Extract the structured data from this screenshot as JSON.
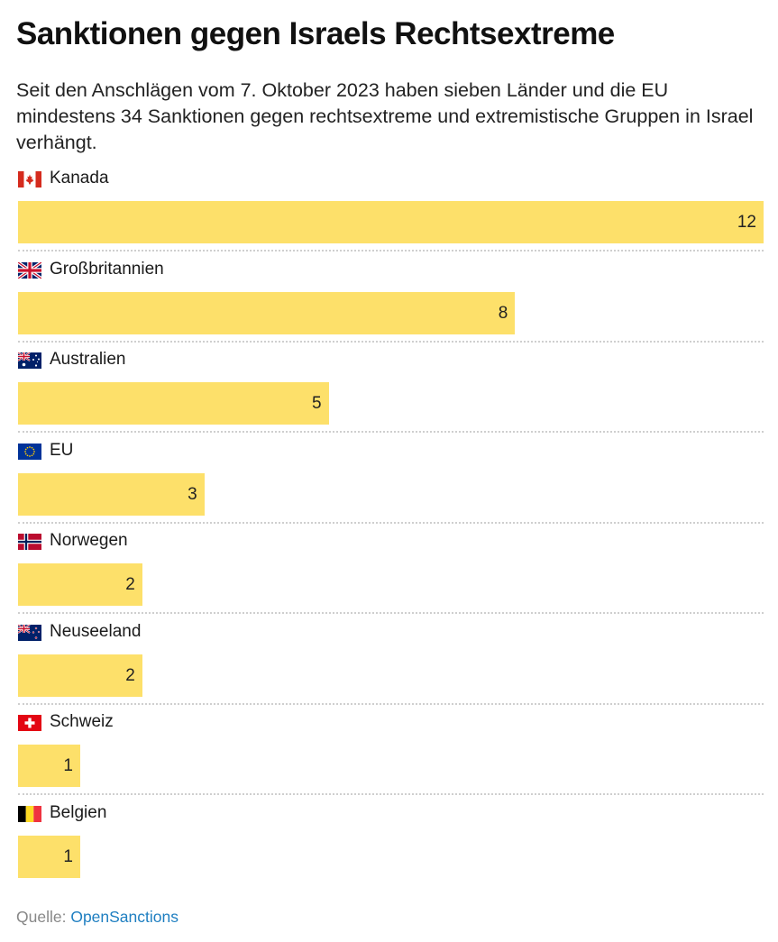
{
  "title": "Sanktionen gegen Israels Rechtsextreme",
  "subtitle": "Seit den Anschlägen vom 7. Oktober 2023 haben sieben Länder und die EU mindestens 34 Sanktionen gegen rechtsextreme und extremistische Gruppen in Israel verhängt.",
  "source": {
    "label": "Quelle:",
    "link_text": "OpenSanctions"
  },
  "colors": {
    "bar": "#fde06a",
    "link": "#1f7fc1",
    "separator": "#cfcfcf"
  },
  "chart_data": {
    "type": "bar",
    "orientation": "horizontal",
    "categories": [
      "Kanada",
      "Großbritannien",
      "Australien",
      "EU",
      "Norwegen",
      "Neuseeland",
      "Schweiz",
      "Belgien"
    ],
    "values": [
      12,
      8,
      5,
      3,
      2,
      2,
      1,
      1
    ],
    "icons": [
      "flag-canada-icon",
      "flag-uk-icon",
      "flag-australia-icon",
      "flag-eu-icon",
      "flag-norway-icon",
      "flag-new-zealand-icon",
      "flag-switzerland-icon",
      "flag-belgium-icon"
    ],
    "xlim": [
      0,
      12
    ],
    "grid": false,
    "data_labels": true
  }
}
